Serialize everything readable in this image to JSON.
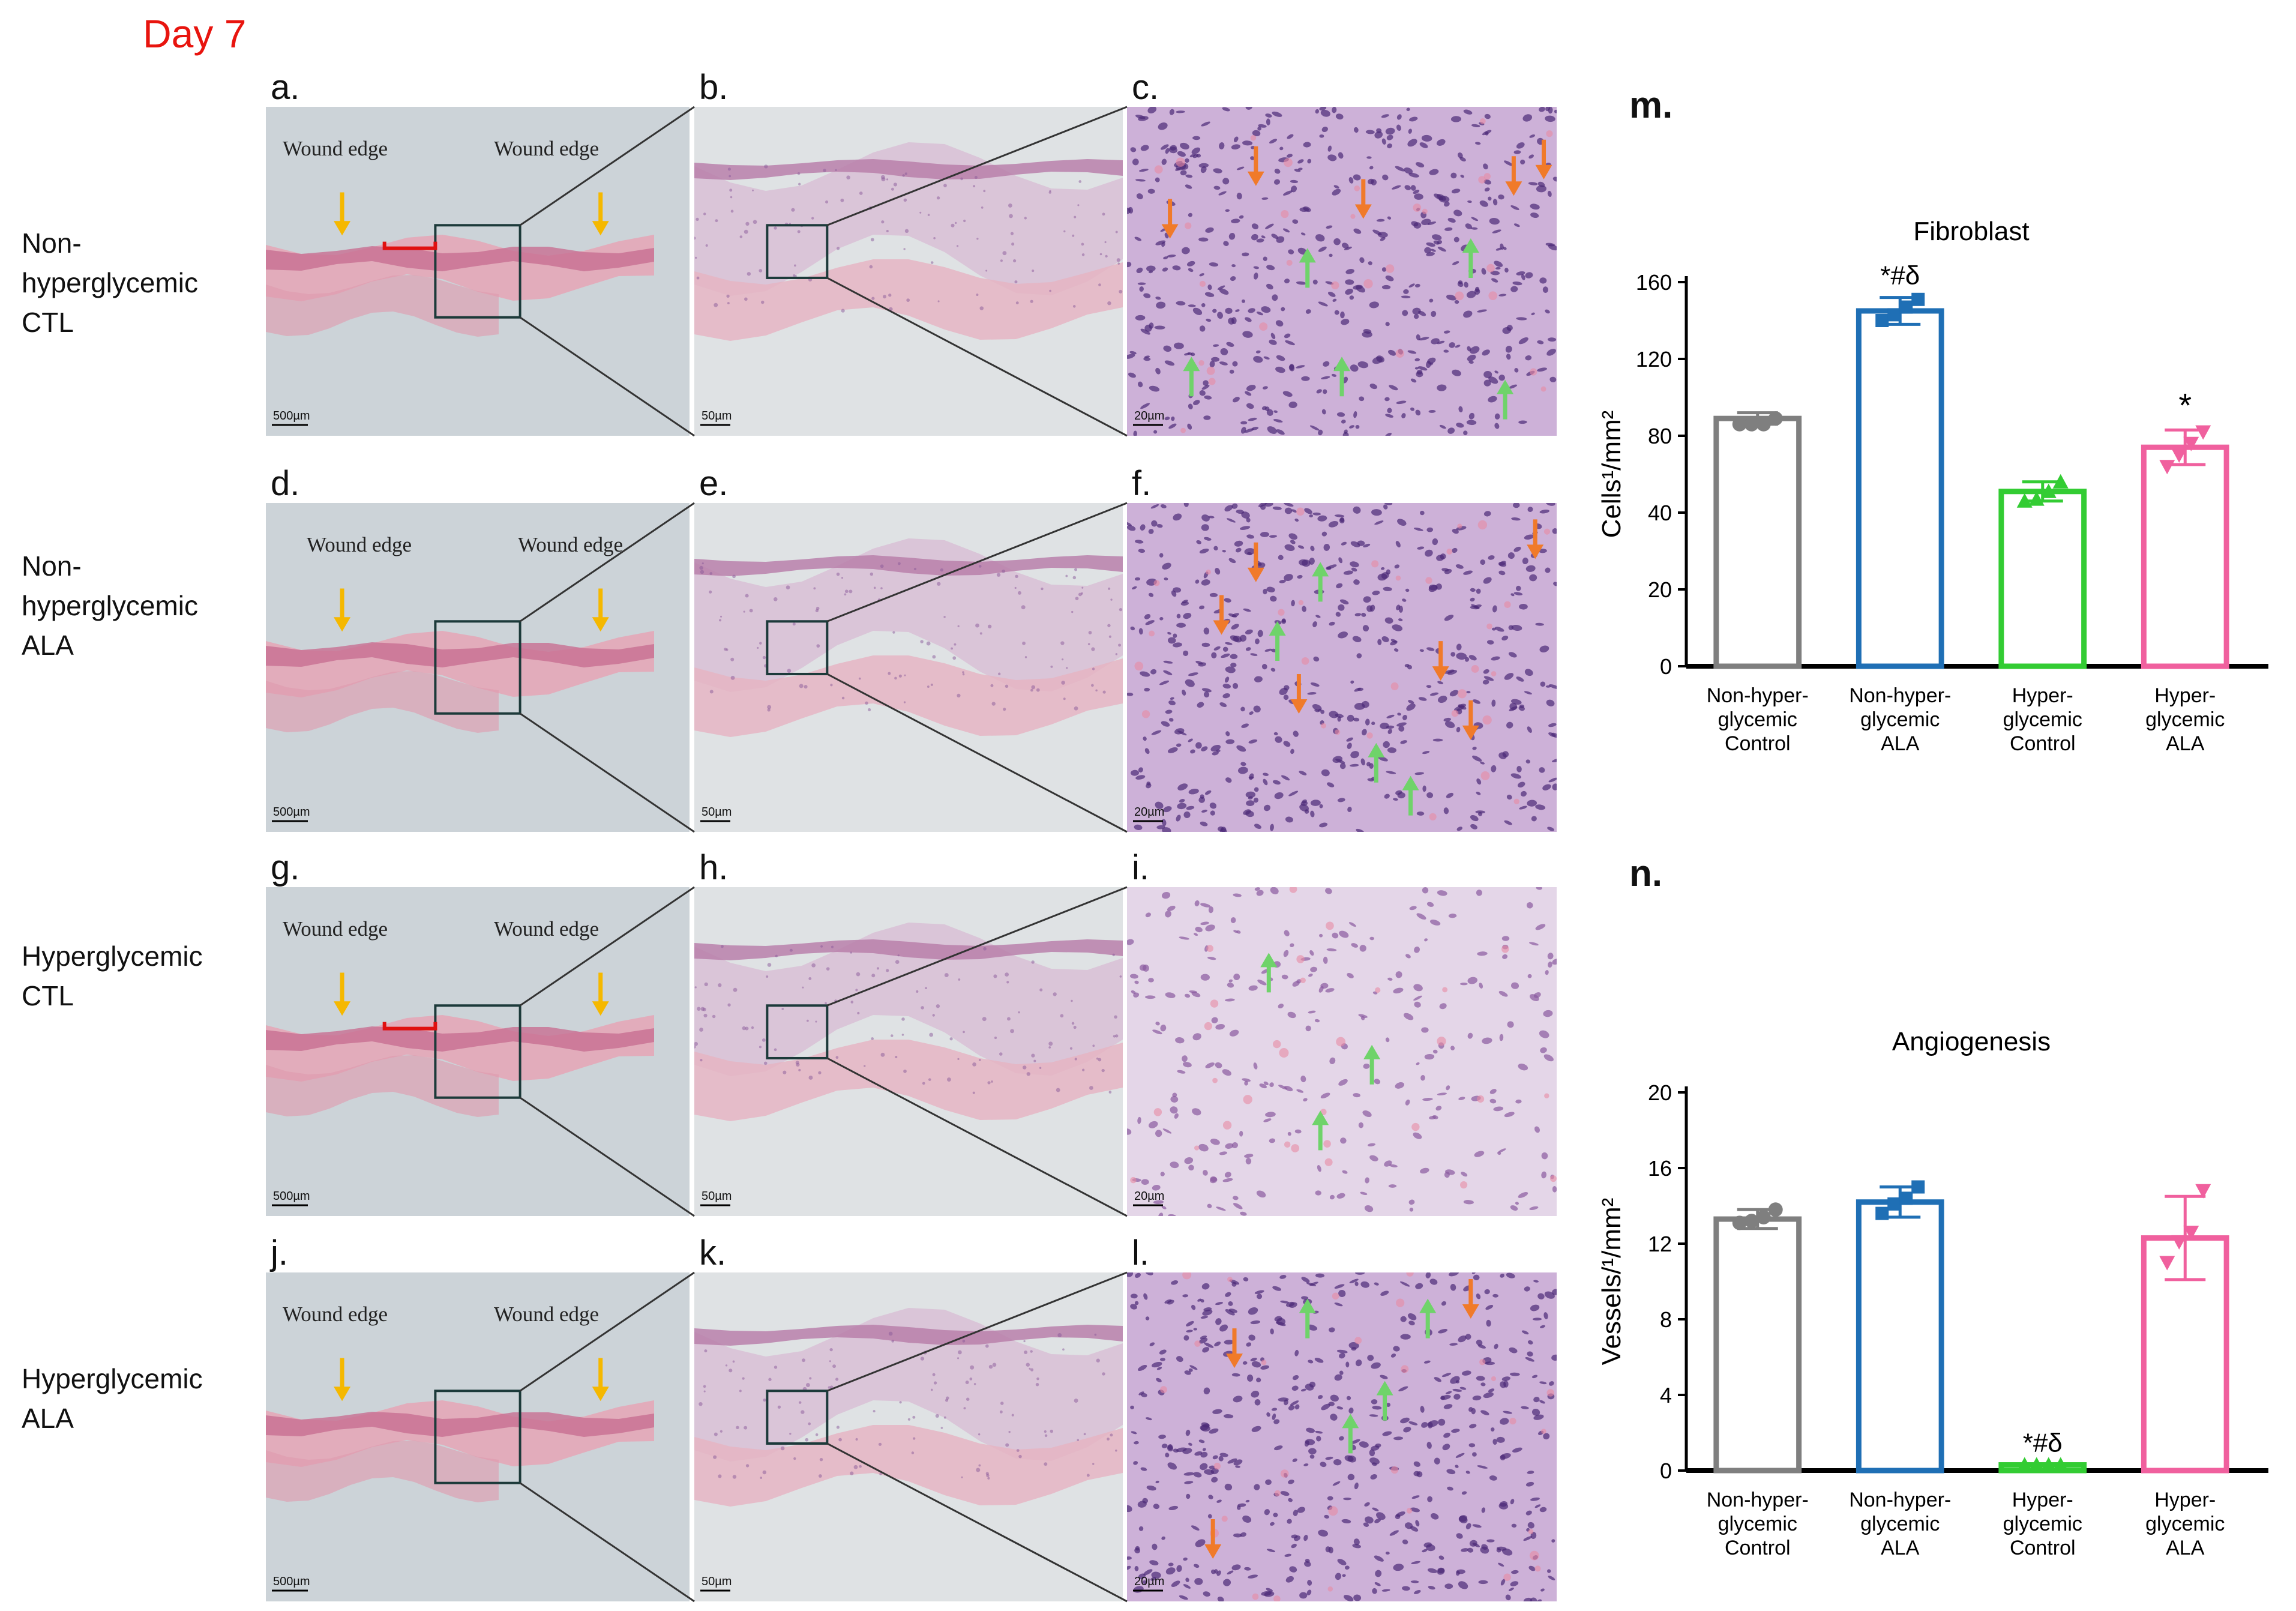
{
  "figure": {
    "day_label": "Day 7",
    "rows": [
      {
        "id": "row1",
        "label": [
          "Non-",
          "hyperglycemic",
          "CTL"
        ]
      },
      {
        "id": "row2",
        "label": [
          "Non-",
          "hyperglycemic",
          "ALA"
        ]
      },
      {
        "id": "row3",
        "label": [
          "Hyperglycemic",
          "CTL"
        ]
      },
      {
        "id": "row4",
        "label": [
          "Hyperglycemic",
          "ALA"
        ]
      }
    ],
    "panels": [
      {
        "letter": "a.",
        "scale": "500µm",
        "wound_left": "Wound edge",
        "wound_right": "Wound edge"
      },
      {
        "letter": "b.",
        "scale": "50µm"
      },
      {
        "letter": "c.",
        "scale": "20µm"
      },
      {
        "letter": "d.",
        "scale": "500µm",
        "wound_left": "Wound edge",
        "wound_right": "Wound edge"
      },
      {
        "letter": "e.",
        "scale": "50µm"
      },
      {
        "letter": "f.",
        "scale": "20µm"
      },
      {
        "letter": "g.",
        "scale": "500µm",
        "wound_left": "Wound edge",
        "wound_right": "Wound edge"
      },
      {
        "letter": "h.",
        "scale": "50µm"
      },
      {
        "letter": "i.",
        "scale": "20µm"
      },
      {
        "letter": "j.",
        "scale": "500µm",
        "wound_left": "Wound edge",
        "wound_right": "Wound edge"
      },
      {
        "letter": "k.",
        "scale": "50µm"
      },
      {
        "letter": "l.",
        "scale": "20µm"
      }
    ],
    "colors": {
      "wound_arrow": "#f5b800",
      "inflammatory_arrow": "#f07a2a",
      "fibroblast_arrow": "#6fd36a",
      "bracket": "#e01010"
    }
  },
  "chart_data": [
    {
      "panel": "m.",
      "type": "bar",
      "title": "Fibroblast",
      "ylabel": "Cells¹/mm²",
      "categories": [
        [
          "Non-hyper-",
          "glycemic",
          "Control"
        ],
        [
          "Non-hyper-",
          "glycemic",
          "ALA"
        ],
        [
          "Hyper-",
          "glycemic",
          "Control"
        ],
        [
          "Hyper-",
          "glycemic",
          "ALA"
        ]
      ],
      "yticks": [
        "0",
        "20",
        "40",
        "80",
        "120",
        "160"
      ],
      "values": [
        89,
        145,
        51,
        74
      ],
      "errors": [
        3,
        7,
        5,
        9
      ],
      "points": [
        [
          86,
          86,
          86,
          89
        ],
        [
          140,
          143,
          147,
          151
        ],
        [
          46,
          47,
          51,
          56
        ],
        [
          64,
          70,
          76,
          82
        ]
      ],
      "markers": [
        "circle",
        "square",
        "triangle-up",
        "triangle-down"
      ],
      "colors": [
        "#7f7f7f",
        "#1f6fb5",
        "#33cc33",
        "#f0609e"
      ],
      "annotations": [
        "",
        "*#δ",
        "",
        "*"
      ]
    },
    {
      "panel": "n.",
      "type": "bar",
      "title": "Angiogenesis",
      "ylabel": "Vessels/¹/mm²",
      "categories": [
        [
          "Non-hyper-",
          "glycemic",
          "Control"
        ],
        [
          "Non-hyper-",
          "glycemic",
          "ALA"
        ],
        [
          "Hyper-",
          "glycemic",
          "Control"
        ],
        [
          "Hyper-",
          "glycemic",
          "ALA"
        ]
      ],
      "yticks": [
        "0",
        "4",
        "8",
        "12",
        "16",
        "20"
      ],
      "ylim": [
        0,
        20
      ],
      "values": [
        13.3,
        14.2,
        0.3,
        12.3
      ],
      "errors": [
        0.5,
        0.8,
        0,
        2.2
      ],
      "points": [
        [
          13.1,
          13.2,
          13.4,
          13.8
        ],
        [
          13.6,
          14.1,
          14.4,
          15.0
        ],
        [
          0.3,
          0.3,
          0.3,
          0.3
        ],
        [
          11.0,
          12.1,
          12.6,
          14.8
        ]
      ],
      "markers": [
        "circle",
        "square",
        "triangle-up",
        "triangle-down"
      ],
      "colors": [
        "#7f7f7f",
        "#1f6fb5",
        "#33cc33",
        "#f0609e"
      ],
      "annotations": [
        "",
        "",
        "*#δ",
        ""
      ]
    }
  ]
}
